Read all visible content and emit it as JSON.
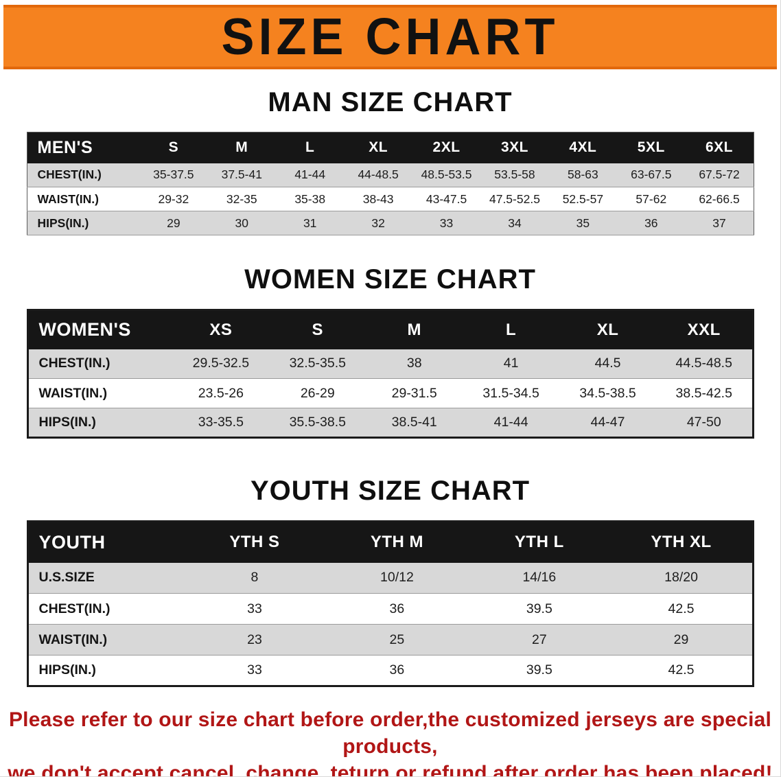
{
  "banner": {
    "title": "SIZE CHART"
  },
  "sections": [
    {
      "heading": "MAN SIZE CHART",
      "table": {
        "header": [
          "MEN'S",
          "S",
          "M",
          "L",
          "XL",
          "2XL",
          "3XL",
          "4XL",
          "5XL",
          "6XL"
        ],
        "rows": [
          [
            "CHEST(IN.)",
            "35-37.5",
            "37.5-41",
            "41-44",
            "44-48.5",
            "48.5-53.5",
            "53.5-58",
            "58-63",
            "63-67.5",
            "67.5-72"
          ],
          [
            "WAIST(IN.)",
            "29-32",
            "32-35",
            "35-38",
            "38-43",
            "43-47.5",
            "47.5-52.5",
            "52.5-57",
            "57-62",
            "62-66.5"
          ],
          [
            "HIPS(IN.)",
            "29",
            "30",
            "31",
            "32",
            "33",
            "34",
            "35",
            "36",
            "37"
          ]
        ]
      }
    },
    {
      "heading": "WOMEN SIZE CHART",
      "table": {
        "header": [
          "WOMEN'S",
          "XS",
          "S",
          "M",
          "L",
          "XL",
          "XXL"
        ],
        "rows": [
          [
            "CHEST(IN.)",
            "29.5-32.5",
            "32.5-35.5",
            "38",
            "41",
            "44.5",
            "44.5-48.5"
          ],
          [
            "WAIST(IN.)",
            "23.5-26",
            "26-29",
            "29-31.5",
            "31.5-34.5",
            "34.5-38.5",
            "38.5-42.5"
          ],
          [
            "HIPS(IN.)",
            "33-35.5",
            "35.5-38.5",
            "38.5-41",
            "41-44",
            "44-47",
            "47-50"
          ]
        ]
      }
    },
    {
      "heading": "YOUTH SIZE CHART",
      "table": {
        "header": [
          "YOUTH",
          "YTH S",
          "YTH M",
          "YTH L",
          "YTH XL"
        ],
        "rows": [
          [
            "U.S.SIZE",
            "8",
            "10/12",
            "14/16",
            "18/20"
          ],
          [
            "CHEST(IN.)",
            "33",
            "36",
            "39.5",
            "42.5"
          ],
          [
            "WAIST(IN.)",
            "23",
            "25",
            "27",
            "29"
          ],
          [
            "HIPS(IN.)",
            "33",
            "36",
            "39.5",
            "42.5"
          ]
        ]
      }
    }
  ],
  "disclaimer": {
    "line1": "Please refer to our size chart before order,the customized jerseys are special products,",
    "line2": "we don't accept cancel, change, teturn or refund after order has been placed!"
  },
  "colors": {
    "banner_bg": "#f5821f",
    "banner_edge": "#e2680b",
    "header_bg": "#161616",
    "row_alt": "#d8d8d8",
    "disclaimer_color": "#b11616"
  }
}
